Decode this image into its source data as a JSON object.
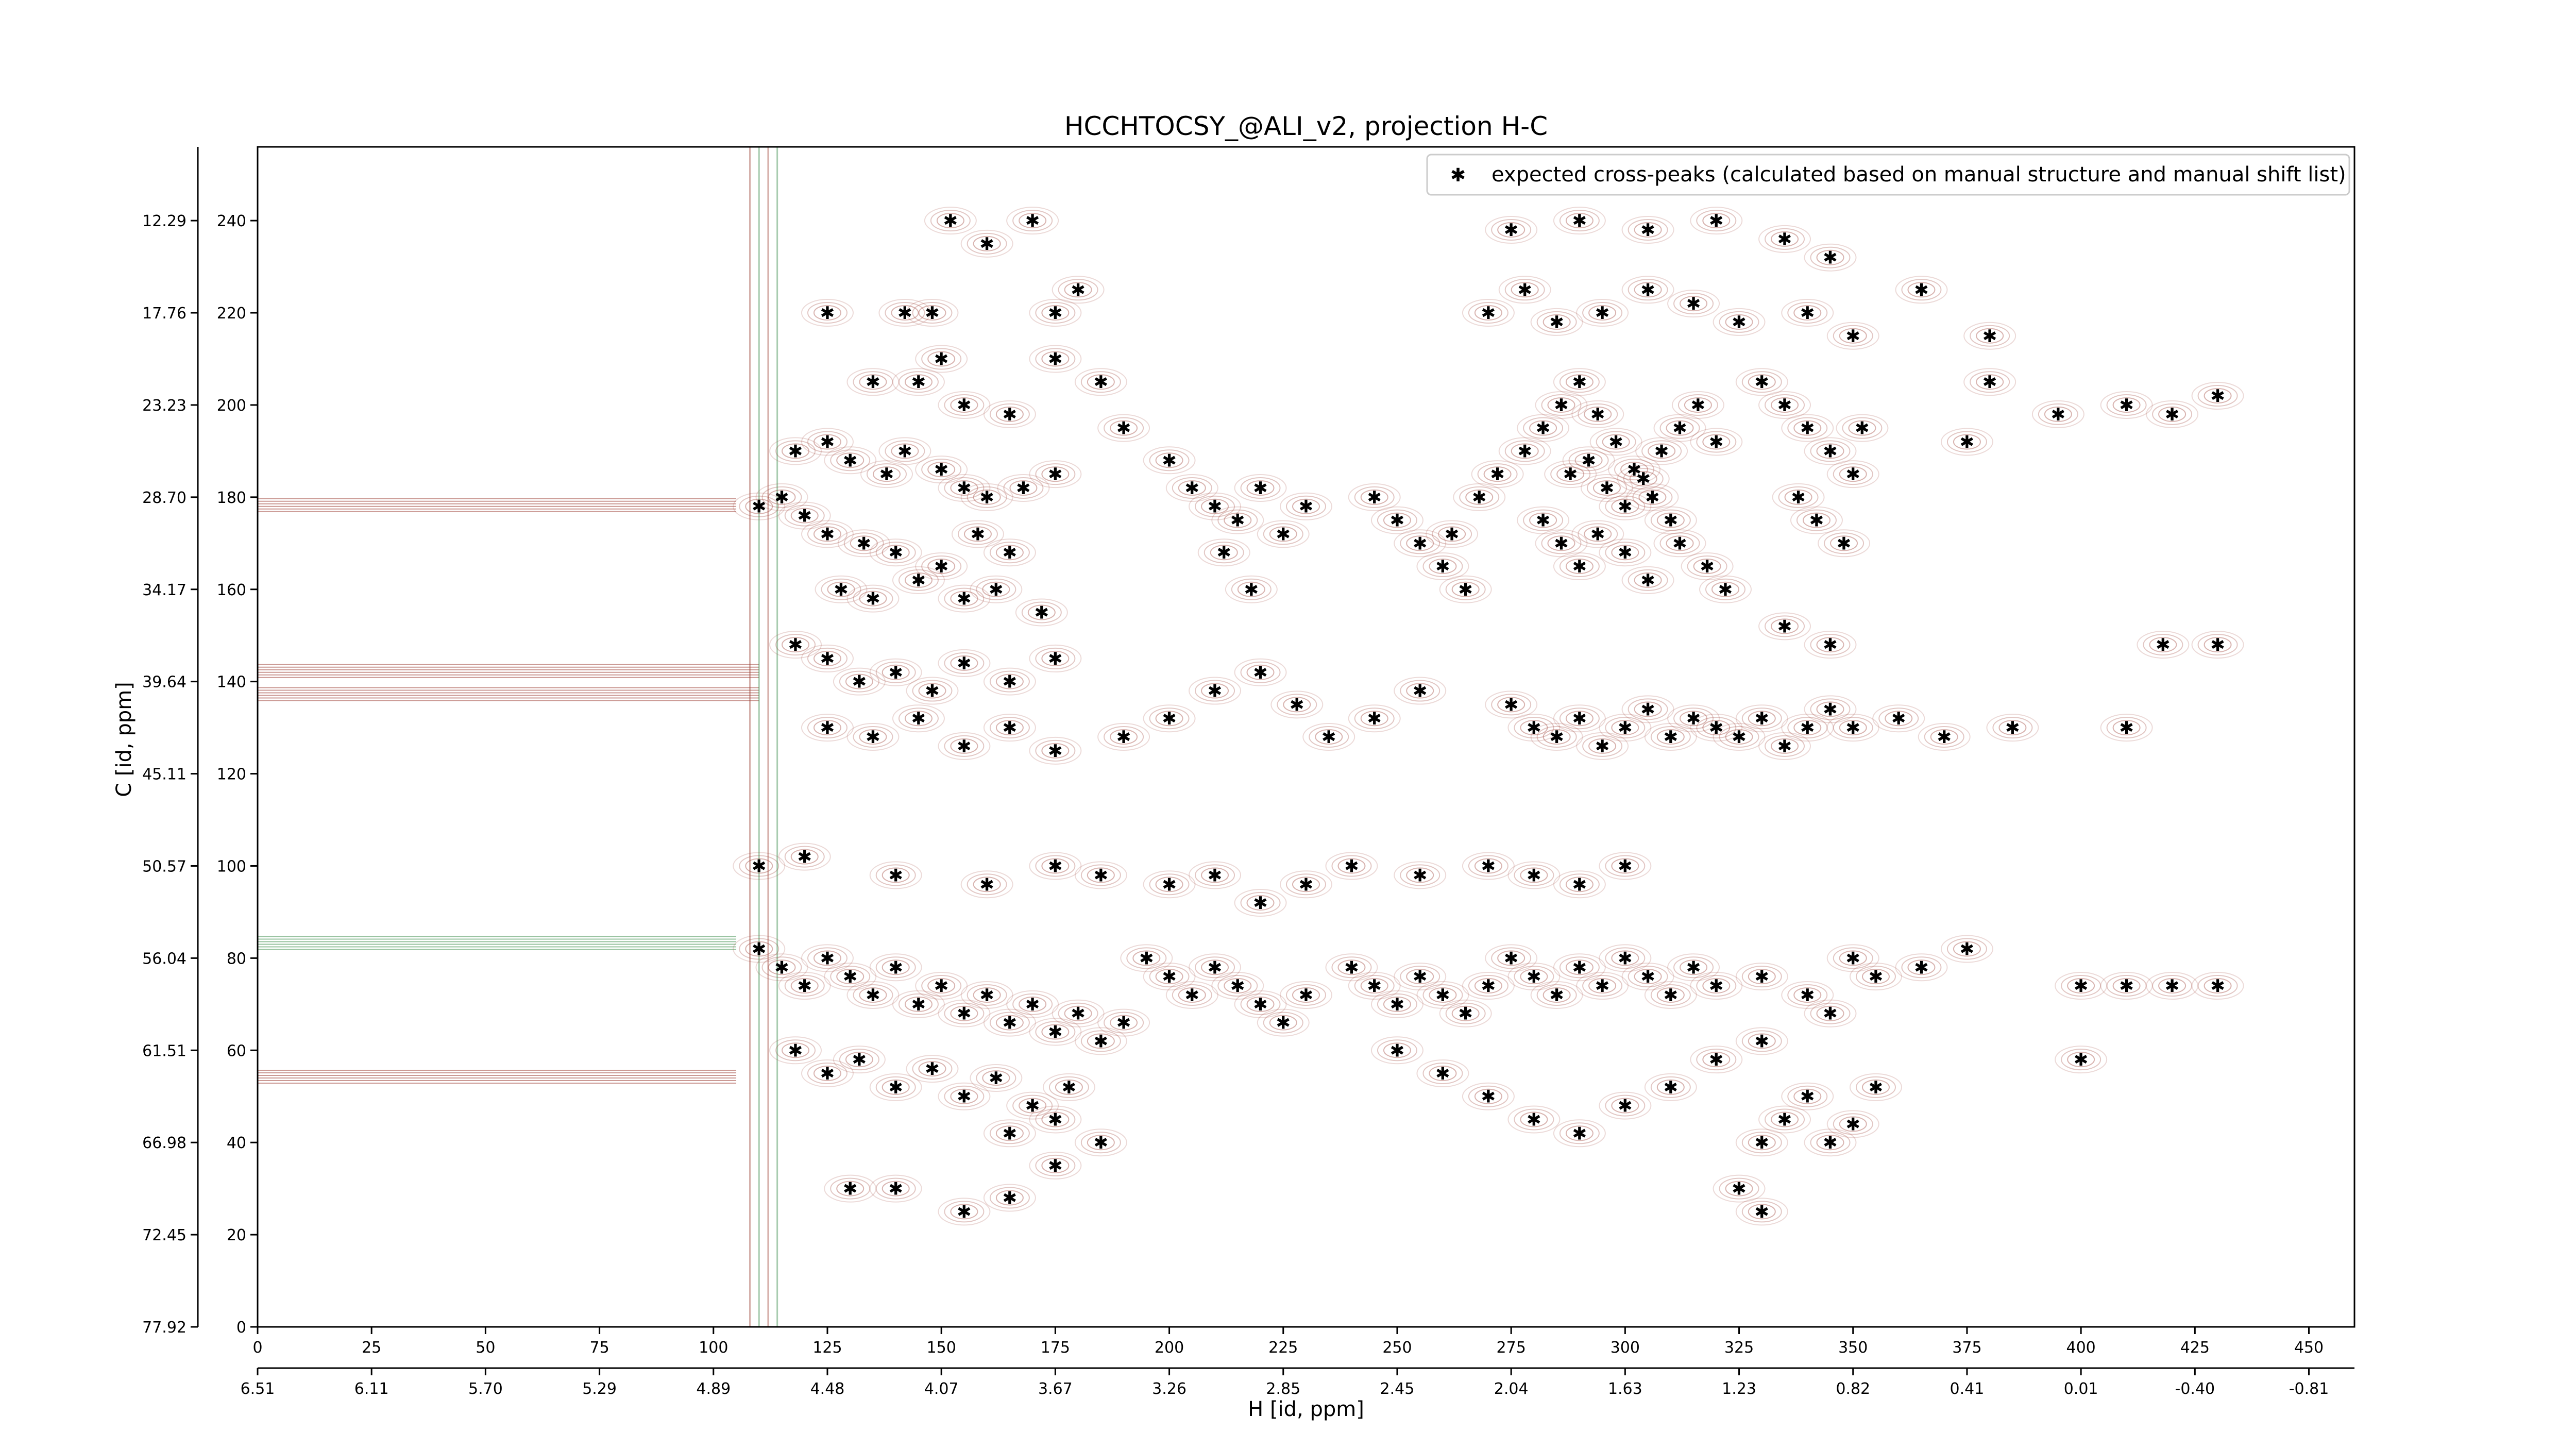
{
  "chart_data": {
    "type": "scatter",
    "title": "HCCHTOCSY_@ALI_v2, projection H-C",
    "xlabel": "H [id, ppm]",
    "ylabel": "C [id, ppm]",
    "x_index_range": [
      0,
      460
    ],
    "y_index_range": [
      0,
      256
    ],
    "x_index_ticks": [
      "0",
      "25",
      "50",
      "75",
      "100",
      "125",
      "150",
      "175",
      "200",
      "225",
      "250",
      "275",
      "300",
      "325",
      "350",
      "375",
      "400",
      "425",
      "450"
    ],
    "y_index_ticks": [
      "0",
      "20",
      "40",
      "60",
      "80",
      "100",
      "120",
      "140",
      "160",
      "180",
      "200",
      "220",
      "240"
    ],
    "x_ppm_ticks": [
      "6.51",
      "6.11",
      "5.70",
      "5.29",
      "4.89",
      "4.48",
      "4.07",
      "3.67",
      "3.26",
      "2.85",
      "2.45",
      "2.04",
      "1.63",
      "1.23",
      "0.82",
      "0.41",
      "0.01",
      "-0.40",
      "-0.81"
    ],
    "y_ppm_ticks": [
      "77.92",
      "72.45",
      "66.98",
      "61.51",
      "56.04",
      "50.57",
      "45.11",
      "39.64",
      "34.17",
      "28.70",
      "23.23",
      "17.76",
      "12.29"
    ],
    "legend": {
      "placement": "top-right",
      "entries": [
        "expected cross-peaks (calculated based on manual structure and manual shift list)"
      ]
    },
    "series": [
      {
        "name": "expected cross-peaks (calculated based on manual structure and manual shift list)",
        "color": "#0000ff",
        "points": [
          [
            125,
            220
          ],
          [
            142,
            220
          ],
          [
            148,
            220
          ],
          [
            175,
            220
          ],
          [
            180,
            225
          ],
          [
            160,
            235
          ],
          [
            152,
            240
          ],
          [
            170,
            240
          ],
          [
            135,
            205
          ],
          [
            145,
            205
          ],
          [
            150,
            210
          ],
          [
            155,
            200
          ],
          [
            165,
            198
          ],
          [
            175,
            210
          ],
          [
            185,
            205
          ],
          [
            190,
            195
          ],
          [
            118,
            190
          ],
          [
            125,
            192
          ],
          [
            130,
            188
          ],
          [
            138,
            185
          ],
          [
            142,
            190
          ],
          [
            150,
            186
          ],
          [
            155,
            182
          ],
          [
            160,
            180
          ],
          [
            168,
            182
          ],
          [
            175,
            185
          ],
          [
            110,
            178
          ],
          [
            115,
            180
          ],
          [
            120,
            176
          ],
          [
            125,
            172
          ],
          [
            133,
            170
          ],
          [
            140,
            168
          ],
          [
            150,
            165
          ],
          [
            158,
            172
          ],
          [
            165,
            168
          ],
          [
            128,
            160
          ],
          [
            135,
            158
          ],
          [
            145,
            162
          ],
          [
            155,
            158
          ],
          [
            162,
            160
          ],
          [
            172,
            155
          ],
          [
            200,
            188
          ],
          [
            205,
            182
          ],
          [
            210,
            178
          ],
          [
            215,
            175
          ],
          [
            220,
            182
          ],
          [
            225,
            172
          ],
          [
            212,
            168
          ],
          [
            218,
            160
          ],
          [
            230,
            178
          ],
          [
            245,
            180
          ],
          [
            250,
            175
          ],
          [
            255,
            170
          ],
          [
            260,
            165
          ],
          [
            262,
            172
          ],
          [
            265,
            160
          ],
          [
            268,
            180
          ],
          [
            272,
            185
          ],
          [
            278,
            190
          ],
          [
            282,
            195
          ],
          [
            286,
            200
          ],
          [
            290,
            205
          ],
          [
            294,
            198
          ],
          [
            298,
            192
          ],
          [
            302,
            186
          ],
          [
            306,
            180
          ],
          [
            310,
            175
          ],
          [
            282,
            175
          ],
          [
            286,
            170
          ],
          [
            290,
            165
          ],
          [
            294,
            172
          ],
          [
            300,
            168
          ],
          [
            305,
            162
          ],
          [
            312,
            170
          ],
          [
            318,
            165
          ],
          [
            322,
            160
          ],
          [
            288,
            185
          ],
          [
            292,
            188
          ],
          [
            296,
            182
          ],
          [
            300,
            178
          ],
          [
            304,
            184
          ],
          [
            308,
            190
          ],
          [
            312,
            195
          ],
          [
            316,
            200
          ],
          [
            320,
            192
          ],
          [
            330,
            205
          ],
          [
            335,
            200
          ],
          [
            340,
            195
          ],
          [
            345,
            190
          ],
          [
            350,
            185
          ],
          [
            338,
            180
          ],
          [
            342,
            175
          ],
          [
            348,
            170
          ],
          [
            352,
            195
          ],
          [
            270,
            220
          ],
          [
            278,
            225
          ],
          [
            285,
            218
          ],
          [
            295,
            220
          ],
          [
            305,
            225
          ],
          [
            315,
            222
          ],
          [
            325,
            218
          ],
          [
            340,
            220
          ],
          [
            350,
            215
          ],
          [
            275,
            238
          ],
          [
            290,
            240
          ],
          [
            305,
            238
          ],
          [
            320,
            240
          ],
          [
            335,
            236
          ],
          [
            345,
            232
          ],
          [
            365,
            225
          ],
          [
            380,
            215
          ],
          [
            380,
            205
          ],
          [
            395,
            198
          ],
          [
            410,
            200
          ],
          [
            420,
            198
          ],
          [
            430,
            202
          ],
          [
            375,
            192
          ],
          [
            118,
            148
          ],
          [
            125,
            145
          ],
          [
            132,
            140
          ],
          [
            140,
            142
          ],
          [
            148,
            138
          ],
          [
            155,
            144
          ],
          [
            165,
            140
          ],
          [
            175,
            145
          ],
          [
            125,
            130
          ],
          [
            135,
            128
          ],
          [
            145,
            132
          ],
          [
            155,
            126
          ],
          [
            165,
            130
          ],
          [
            175,
            125
          ],
          [
            190,
            128
          ],
          [
            200,
            132
          ],
          [
            210,
            138
          ],
          [
            220,
            142
          ],
          [
            228,
            135
          ],
          [
            235,
            128
          ],
          [
            245,
            132
          ],
          [
            255,
            138
          ],
          [
            275,
            135
          ],
          [
            280,
            130
          ],
          [
            285,
            128
          ],
          [
            290,
            132
          ],
          [
            295,
            126
          ],
          [
            300,
            130
          ],
          [
            305,
            134
          ],
          [
            310,
            128
          ],
          [
            315,
            132
          ],
          [
            320,
            130
          ],
          [
            325,
            128
          ],
          [
            330,
            132
          ],
          [
            335,
            126
          ],
          [
            340,
            130
          ],
          [
            345,
            134
          ],
          [
            350,
            130
          ],
          [
            360,
            132
          ],
          [
            370,
            128
          ],
          [
            385,
            130
          ],
          [
            410,
            130
          ],
          [
            418,
            148
          ],
          [
            430,
            148
          ],
          [
            345,
            148
          ],
          [
            335,
            152
          ],
          [
            110,
            100
          ],
          [
            120,
            102
          ],
          [
            140,
            98
          ],
          [
            160,
            96
          ],
          [
            175,
            100
          ],
          [
            185,
            98
          ],
          [
            200,
            96
          ],
          [
            210,
            98
          ],
          [
            220,
            92
          ],
          [
            230,
            96
          ],
          [
            240,
            100
          ],
          [
            255,
            98
          ],
          [
            270,
            100
          ],
          [
            280,
            98
          ],
          [
            290,
            96
          ],
          [
            300,
            100
          ],
          [
            110,
            82
          ],
          [
            115,
            78
          ],
          [
            120,
            74
          ],
          [
            125,
            80
          ],
          [
            130,
            76
          ],
          [
            135,
            72
          ],
          [
            140,
            78
          ],
          [
            145,
            70
          ],
          [
            150,
            74
          ],
          [
            155,
            68
          ],
          [
            160,
            72
          ],
          [
            165,
            66
          ],
          [
            170,
            70
          ],
          [
            175,
            64
          ],
          [
            180,
            68
          ],
          [
            185,
            62
          ],
          [
            190,
            66
          ],
          [
            118,
            60
          ],
          [
            125,
            55
          ],
          [
            132,
            58
          ],
          [
            140,
            52
          ],
          [
            148,
            56
          ],
          [
            155,
            50
          ],
          [
            162,
            54
          ],
          [
            170,
            48
          ],
          [
            178,
            52
          ],
          [
            195,
            80
          ],
          [
            200,
            76
          ],
          [
            205,
            72
          ],
          [
            210,
            78
          ],
          [
            215,
            74
          ],
          [
            220,
            70
          ],
          [
            225,
            66
          ],
          [
            230,
            72
          ],
          [
            240,
            78
          ],
          [
            245,
            74
          ],
          [
            250,
            70
          ],
          [
            255,
            76
          ],
          [
            260,
            72
          ],
          [
            265,
            68
          ],
          [
            270,
            74
          ],
          [
            275,
            80
          ],
          [
            280,
            76
          ],
          [
            285,
            72
          ],
          [
            290,
            78
          ],
          [
            295,
            74
          ],
          [
            300,
            80
          ],
          [
            305,
            76
          ],
          [
            310,
            72
          ],
          [
            315,
            78
          ],
          [
            320,
            74
          ],
          [
            330,
            76
          ],
          [
            340,
            72
          ],
          [
            345,
            68
          ],
          [
            350,
            80
          ],
          [
            355,
            76
          ],
          [
            365,
            78
          ],
          [
            375,
            82
          ],
          [
            250,
            60
          ],
          [
            260,
            55
          ],
          [
            270,
            50
          ],
          [
            280,
            45
          ],
          [
            290,
            42
          ],
          [
            300,
            48
          ],
          [
            310,
            52
          ],
          [
            320,
            58
          ],
          [
            330,
            62
          ],
          [
            330,
            40
          ],
          [
            335,
            45
          ],
          [
            340,
            50
          ],
          [
            345,
            40
          ],
          [
            350,
            44
          ],
          [
            355,
            52
          ],
          [
            325,
            30
          ],
          [
            330,
            25
          ],
          [
            400,
            58
          ],
          [
            410,
            74
          ],
          [
            420,
            74
          ],
          [
            430,
            74
          ],
          [
            400,
            74
          ],
          [
            130,
            30
          ],
          [
            140,
            30
          ],
          [
            155,
            25
          ],
          [
            165,
            28
          ],
          [
            175,
            35
          ],
          [
            185,
            40
          ],
          [
            175,
            45
          ],
          [
            165,
            42
          ]
        ]
      }
    ]
  }
}
